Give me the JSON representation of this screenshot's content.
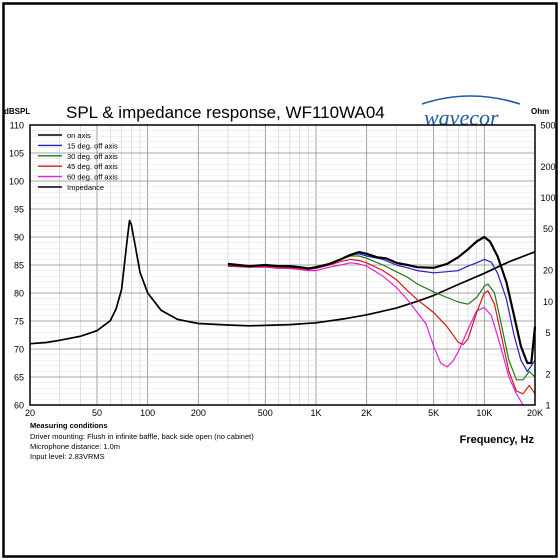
{
  "header": {
    "y_left_unit": "dBSPL",
    "title": "SPL & impedance response, WF110WA04",
    "brand": "wavecor",
    "y_right_unit": "Ohm"
  },
  "footer": {
    "conditions_title": "Measuring conditions",
    "lines": [
      "Driver mounting: Flush in infinite baffle, back side open (no cabinet)",
      "Microphone distance: 1.0m",
      "Input level: 2.83VRMS"
    ],
    "x_axis_label": "Frequency, Hz"
  },
  "colors": {
    "brand": "#1f5aa6",
    "on_axis": "#000000",
    "deg15": "#1f1fd0",
    "deg30": "#1a7a1a",
    "deg45": "#d01a1a",
    "deg60": "#e020e0",
    "impedance": "#000000"
  },
  "chart_data": {
    "type": "line",
    "x_scale": "log",
    "xlim": [
      20,
      20000
    ],
    "ylim": [
      60,
      110
    ],
    "y2_scale": "log",
    "y2lim": [
      1,
      500
    ],
    "grid": true,
    "legend_position": "top-left",
    "x_ticks": [
      {
        "value": 20,
        "label": "20"
      },
      {
        "value": 50,
        "label": "50"
      },
      {
        "value": 100,
        "label": "100"
      },
      {
        "value": 200,
        "label": "200"
      },
      {
        "value": 500,
        "label": "500"
      },
      {
        "value": 1000,
        "label": "1K"
      },
      {
        "value": 2000,
        "label": "2K"
      },
      {
        "value": 5000,
        "label": "5K"
      },
      {
        "value": 10000,
        "label": "10K"
      },
      {
        "value": 20000,
        "label": "20K"
      }
    ],
    "y_ticks": [
      "110",
      "105",
      "100",
      "95",
      "90",
      "85",
      "80",
      "75",
      "70",
      "65",
      "60"
    ],
    "y2_ticks": [
      {
        "value": 500,
        "label": "500"
      },
      {
        "value": 200,
        "label": "200"
      },
      {
        "value": 100,
        "label": "100"
      },
      {
        "value": 50,
        "label": "50"
      },
      {
        "value": 20,
        "label": "20"
      },
      {
        "value": 10,
        "label": "10"
      },
      {
        "value": 5,
        "label": "5"
      },
      {
        "value": 2,
        "label": "2"
      },
      {
        "value": 1,
        "label": "1"
      }
    ],
    "series": [
      {
        "name": "on axis",
        "axis": "left",
        "width": 2.2,
        "points": [
          [
            300,
            85.2
          ],
          [
            400,
            84.8
          ],
          [
            500,
            85.0
          ],
          [
            600,
            84.8
          ],
          [
            700,
            84.8
          ],
          [
            800,
            84.6
          ],
          [
            900,
            84.4
          ],
          [
            1000,
            84.6
          ],
          [
            1200,
            85.2
          ],
          [
            1400,
            86.0
          ],
          [
            1600,
            86.8
          ],
          [
            1800,
            87.3
          ],
          [
            2000,
            87.0
          ],
          [
            2300,
            86.4
          ],
          [
            2600,
            86.2
          ],
          [
            3000,
            85.4
          ],
          [
            3500,
            85.0
          ],
          [
            4000,
            84.6
          ],
          [
            5000,
            84.5
          ],
          [
            6000,
            85.2
          ],
          [
            7000,
            86.4
          ],
          [
            8000,
            87.8
          ],
          [
            9000,
            89.2
          ],
          [
            10000,
            90.0
          ],
          [
            10800,
            89.2
          ],
          [
            12000,
            86.5
          ],
          [
            13500,
            82.0
          ],
          [
            15000,
            76.0
          ],
          [
            16500,
            70.5
          ],
          [
            18000,
            67.5
          ],
          [
            19000,
            67.5
          ],
          [
            20000,
            74.0
          ]
        ]
      },
      {
        "name": "15 deg. off axis",
        "axis": "left",
        "width": 1.2,
        "points": [
          [
            300,
            85.0
          ],
          [
            400,
            84.8
          ],
          [
            500,
            85.0
          ],
          [
            600,
            84.8
          ],
          [
            700,
            84.7
          ],
          [
            800,
            84.6
          ],
          [
            900,
            84.4
          ],
          [
            1000,
            84.5
          ],
          [
            1200,
            85.2
          ],
          [
            1400,
            86.0
          ],
          [
            1600,
            86.8
          ],
          [
            1800,
            87.0
          ],
          [
            2000,
            86.6
          ],
          [
            2500,
            86.0
          ],
          [
            3000,
            85.0
          ],
          [
            3500,
            84.5
          ],
          [
            4000,
            84.0
          ],
          [
            5000,
            83.6
          ],
          [
            6000,
            83.8
          ],
          [
            7000,
            84.0
          ],
          [
            8000,
            84.8
          ],
          [
            9000,
            85.4
          ],
          [
            10000,
            86.0
          ],
          [
            11000,
            85.5
          ],
          [
            12000,
            83.5
          ],
          [
            13500,
            79.0
          ],
          [
            15000,
            72.5
          ],
          [
            16500,
            68.0
          ],
          [
            18000,
            66.0
          ],
          [
            19000,
            67.0
          ],
          [
            20000,
            68.0
          ]
        ]
      },
      {
        "name": "30 deg. off axis",
        "axis": "left",
        "width": 1.2,
        "points": [
          [
            300,
            85.0
          ],
          [
            400,
            84.8
          ],
          [
            500,
            85.0
          ],
          [
            600,
            84.8
          ],
          [
            700,
            84.7
          ],
          [
            800,
            84.6
          ],
          [
            900,
            84.4
          ],
          [
            1000,
            84.5
          ],
          [
            1200,
            85.2
          ],
          [
            1400,
            86.0
          ],
          [
            1600,
            86.6
          ],
          [
            1800,
            86.6
          ],
          [
            2000,
            86.2
          ],
          [
            2500,
            85.0
          ],
          [
            3000,
            83.8
          ],
          [
            3500,
            82.8
          ],
          [
            4000,
            81.6
          ],
          [
            5000,
            80.2
          ],
          [
            6000,
            79.2
          ],
          [
            7000,
            78.4
          ],
          [
            8000,
            78.0
          ],
          [
            9000,
            79.2
          ],
          [
            10000,
            81.2
          ],
          [
            10500,
            81.6
          ],
          [
            11500,
            80.0
          ],
          [
            12500,
            75.0
          ],
          [
            14000,
            68.0
          ],
          [
            15500,
            64.5
          ],
          [
            17000,
            64.5
          ],
          [
            18500,
            66.0
          ],
          [
            20000,
            65.0
          ]
        ]
      },
      {
        "name": "45 deg. off axis",
        "axis": "left",
        "width": 1.2,
        "points": [
          [
            300,
            84.8
          ],
          [
            400,
            84.6
          ],
          [
            500,
            84.8
          ],
          [
            600,
            84.6
          ],
          [
            700,
            84.5
          ],
          [
            800,
            84.4
          ],
          [
            900,
            84.2
          ],
          [
            1000,
            84.4
          ],
          [
            1200,
            85.0
          ],
          [
            1400,
            85.6
          ],
          [
            1600,
            86.0
          ],
          [
            1800,
            85.8
          ],
          [
            2000,
            85.4
          ],
          [
            2500,
            84.0
          ],
          [
            3000,
            82.4
          ],
          [
            3500,
            80.4
          ],
          [
            4000,
            78.8
          ],
          [
            5000,
            76.5
          ],
          [
            6000,
            74.0
          ],
          [
            7000,
            71.2
          ],
          [
            7500,
            70.8
          ],
          [
            8000,
            71.8
          ],
          [
            9000,
            76.5
          ],
          [
            10000,
            80.0
          ],
          [
            10500,
            80.4
          ],
          [
            11500,
            78.0
          ],
          [
            12500,
            73.0
          ],
          [
            14000,
            66.0
          ],
          [
            15500,
            62.5
          ],
          [
            17000,
            62.0
          ],
          [
            18500,
            63.5
          ],
          [
            20000,
            62.0
          ]
        ]
      },
      {
        "name": "60 deg. off axis",
        "axis": "left",
        "width": 1.2,
        "points": [
          [
            300,
            84.8
          ],
          [
            400,
            84.6
          ],
          [
            500,
            84.6
          ],
          [
            600,
            84.4
          ],
          [
            700,
            84.4
          ],
          [
            800,
            84.2
          ],
          [
            900,
            84.0
          ],
          [
            1000,
            84.0
          ],
          [
            1200,
            84.6
          ],
          [
            1400,
            85.0
          ],
          [
            1600,
            85.4
          ],
          [
            1800,
            85.2
          ],
          [
            2000,
            84.8
          ],
          [
            2500,
            83.0
          ],
          [
            3000,
            81.0
          ],
          [
            3500,
            78.8
          ],
          [
            4000,
            76.5
          ],
          [
            4500,
            74.5
          ],
          [
            5000,
            70.5
          ],
          [
            5500,
            67.5
          ],
          [
            6000,
            66.8
          ],
          [
            6500,
            67.8
          ],
          [
            7000,
            69.5
          ],
          [
            8000,
            73.5
          ],
          [
            9000,
            76.8
          ],
          [
            10000,
            77.4
          ],
          [
            11000,
            76.0
          ],
          [
            12500,
            70.5
          ],
          [
            14000,
            65.0
          ],
          [
            15500,
            62.0
          ],
          [
            17000,
            60.0
          ]
        ]
      },
      {
        "name": "Impedance",
        "axis": "right",
        "width": 1.7,
        "points": [
          [
            20,
            3.9
          ],
          [
            25,
            4.0
          ],
          [
            30,
            4.2
          ],
          [
            40,
            4.6
          ],
          [
            50,
            5.2
          ],
          [
            60,
            6.5
          ],
          [
            65,
            8.5
          ],
          [
            70,
            13.0
          ],
          [
            75,
            35.0
          ],
          [
            78,
            60.0
          ],
          [
            80,
            55.0
          ],
          [
            85,
            32.0
          ],
          [
            90,
            19.0
          ],
          [
            100,
            12.0
          ],
          [
            120,
            8.2
          ],
          [
            150,
            6.7
          ],
          [
            200,
            6.1
          ],
          [
            300,
            5.9
          ],
          [
            400,
            5.8
          ],
          [
            500,
            5.85
          ],
          [
            700,
            5.95
          ],
          [
            1000,
            6.2
          ],
          [
            1500,
            6.8
          ],
          [
            2000,
            7.4
          ],
          [
            3000,
            8.6
          ],
          [
            4000,
            10.0
          ],
          [
            5000,
            11.4
          ],
          [
            7000,
            14.5
          ],
          [
            10000,
            18.6
          ],
          [
            14000,
            24.0
          ],
          [
            20000,
            30.0
          ]
        ]
      }
    ]
  }
}
